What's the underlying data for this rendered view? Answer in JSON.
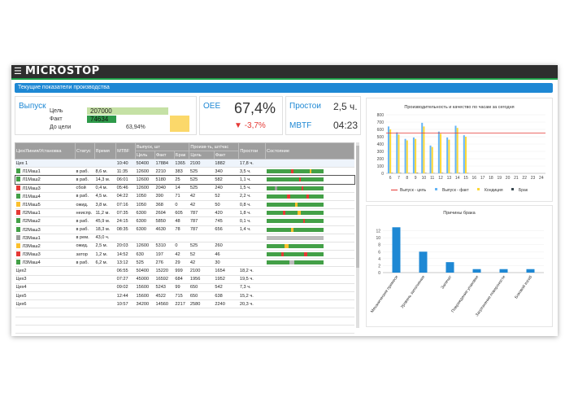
{
  "app": {
    "logo": "MICROSTOP",
    "page_title": "Текущие показатели производства"
  },
  "output": {
    "title": "Выпуск",
    "target_label": "Цель",
    "target_value": "207000",
    "fact_label": "Факт",
    "fact_value": "74634",
    "remain_label": "До цели",
    "remain_value": "63,94%",
    "fact_fraction": 0.36
  },
  "oee": {
    "title": "OEE",
    "value": "67,4%",
    "delta": "-3,7%"
  },
  "downtime": {
    "title": "Простои",
    "value": "2,5 ч.",
    "mtbf_label": "MBTF",
    "mtbf_value": "04:23"
  },
  "table": {
    "headers": {
      "unit": "Цех/Линия/Установка",
      "status": "Статус",
      "time": "Время",
      "mtbf": "MTBF",
      "output": "Выпуск, шт",
      "target": "Цель",
      "fact": "Факт",
      "defect": "Брак",
      "rate": "Произв-ть, шт/час",
      "rate_target": "Цель",
      "rate_fact": "Факт",
      "downtime": "Простои",
      "state": "Состояние"
    },
    "rows": [
      {
        "name": "Цех 1",
        "status": "",
        "time": "",
        "mtbf": "10:40",
        "target": "50400",
        "fact": "17884",
        "defect": "1365",
        "rt": "2100",
        "rf": "1882",
        "down": "17,8 ч.",
        "color": "",
        "indent": 0,
        "gantt": "none"
      },
      {
        "name": "Л1Маш1",
        "status": "в раб.",
        "time": "8,6 м.",
        "mtbf": "11:35",
        "target": "12600",
        "fact": "2210",
        "defect": "383",
        "rt": "525",
        "rf": "340",
        "down": "3,5 ч.",
        "color": "#43a047",
        "indent": 1,
        "gantt": "g1"
      },
      {
        "name": "Л1Маш2",
        "status": "в раб.",
        "time": "14,3 м.",
        "mtbf": "06:01",
        "target": "12600",
        "fact": "5180",
        "defect": "25",
        "rt": "525",
        "rf": "582",
        "down": "1,1 ч.",
        "color": "#43a047",
        "indent": 1,
        "gantt": "g2"
      },
      {
        "name": "Л1Маш3",
        "status": "сбой",
        "time": "0,4 м.",
        "mtbf": "05:46",
        "target": "12600",
        "fact": "2040",
        "defect": "14",
        "rt": "525",
        "rf": "240",
        "down": "1,5 ч.",
        "color": "#e53935",
        "indent": 1,
        "gantt": "g3"
      },
      {
        "name": "Л1Маш4",
        "status": "в раб.",
        "time": "4,5 м.",
        "mtbf": "04:22",
        "target": "1050",
        "fact": "390",
        "defect": "71",
        "rt": "42",
        "rf": "52",
        "down": "2,2 ч.",
        "color": "#43a047",
        "indent": 1,
        "gantt": "g4"
      },
      {
        "name": "Л1Маш5",
        "status": "ожид.",
        "time": "3,8 м.",
        "mtbf": "07:16",
        "target": "1050",
        "fact": "368",
        "defect": "0",
        "rt": "42",
        "rf": "50",
        "down": "0,8 ч.",
        "color": "#fbc02d",
        "indent": 1,
        "gantt": "g5"
      },
      {
        "name": "Л2Маш1",
        "status": "неиспр.",
        "time": "11,2 м.",
        "mtbf": "07:35",
        "target": "6300",
        "fact": "2604",
        "defect": "605",
        "rt": "787",
        "rf": "420",
        "down": "1,8 ч.",
        "color": "#e53935",
        "indent": 1,
        "gantt": "g6"
      },
      {
        "name": "Л2Маш2",
        "status": "в раб.",
        "time": "45,9 м.",
        "mtbf": "24:15",
        "target": "6300",
        "fact": "5850",
        "defect": "48",
        "rt": "787",
        "rf": "745",
        "down": "0,1 ч.",
        "color": "#43a047",
        "indent": 1,
        "gantt": "g7"
      },
      {
        "name": "Л2Маш3",
        "status": "в раб.",
        "time": "18,3 м.",
        "mtbf": "08:35",
        "target": "6300",
        "fact": "4630",
        "defect": "78",
        "rt": "787",
        "rf": "656",
        "down": "1,4 ч.",
        "color": "#43a047",
        "indent": 1,
        "gantt": "g8"
      },
      {
        "name": "Л3Маш1",
        "status": "в рем.",
        "time": "43,0 ч.",
        "mtbf": "",
        "target": "",
        "fact": "",
        "defect": "",
        "rt": "",
        "rf": "",
        "down": "",
        "color": "#9e9e9e",
        "indent": 1,
        "gantt": "g9"
      },
      {
        "name": "Л3Маш2",
        "status": "ожид.",
        "time": "2,5 м.",
        "mtbf": "20:03",
        "target": "12600",
        "fact": "5310",
        "defect": "0",
        "rt": "525",
        "rf": "260",
        "down": "",
        "color": "#fbc02d",
        "indent": 1,
        "gantt": "g10"
      },
      {
        "name": "Л3Маш3",
        "status": "затор",
        "time": "1,2 м.",
        "mtbf": "14:52",
        "target": "630",
        "fact": "197",
        "defect": "42",
        "rt": "52",
        "rf": "46",
        "down": "",
        "color": "#e53935",
        "indent": 1,
        "gantt": "g11"
      },
      {
        "name": "Л3Маш4",
        "status": "в раб.",
        "time": "6,2 м.",
        "mtbf": "13:12",
        "target": "525",
        "fact": "276",
        "defect": "29",
        "rt": "42",
        "rf": "30",
        "down": "",
        "color": "#43a047",
        "indent": 1,
        "gantt": "g12"
      },
      {
        "name": "Цех2",
        "status": "",
        "time": "",
        "mtbf": "06:55",
        "target": "50400",
        "fact": "15220",
        "defect": "999",
        "rt": "2100",
        "rf": "1654",
        "down": "18,2 ч.",
        "color": "",
        "indent": 0,
        "gantt": "none"
      },
      {
        "name": "Цех3",
        "status": "",
        "time": "",
        "mtbf": "07:27",
        "target": "45000",
        "fact": "16592",
        "defect": "684",
        "rt": "1956",
        "rf": "1952",
        "down": "19,5 ч.",
        "color": "",
        "indent": 0,
        "gantt": "none"
      },
      {
        "name": "Цех4",
        "status": "",
        "time": "",
        "mtbf": "09:02",
        "target": "15600",
        "fact": "5243",
        "defect": "99",
        "rt": "650",
        "rf": "542",
        "down": "7,3 ч.",
        "color": "",
        "indent": 0,
        "gantt": "none"
      },
      {
        "name": "Цех5",
        "status": "",
        "time": "",
        "mtbf": "12:44",
        "target": "15600",
        "fact": "4522",
        "defect": "715",
        "rt": "650",
        "rf": "638",
        "down": "15,2 ч.",
        "color": "",
        "indent": 0,
        "gantt": "none"
      },
      {
        "name": "Цех6",
        "status": "",
        "time": "",
        "mtbf": "10:57",
        "target": "34200",
        "fact": "14560",
        "defect": "2217",
        "rt": "2580",
        "rf": "2240",
        "down": "20,3 ч.",
        "color": "",
        "indent": 0,
        "gantt": "none"
      }
    ]
  },
  "chart_data": [
    {
      "type": "bar",
      "title": "Производительность и качество по часам за сегодня",
      "categories": [
        "6",
        "7",
        "8",
        "9",
        "10",
        "11",
        "12",
        "13",
        "14",
        "15",
        "16",
        "17",
        "18",
        "19",
        "20",
        "21",
        "22",
        "23",
        "24"
      ],
      "ylim": [
        0,
        800
      ],
      "yticks": [
        0,
        100,
        200,
        300,
        400,
        500,
        600,
        700,
        800
      ],
      "target_line": 550,
      "series": [
        {
          "name": "Выпуск - цель",
          "color": "#e53935",
          "kind": "line"
        },
        {
          "name": "Выпуск - факт",
          "color": "#64b5f6",
          "values": [
            640,
            560,
            470,
            490,
            690,
            380,
            570,
            490,
            650,
            520,
            0,
            0,
            0,
            0,
            0,
            0,
            0,
            0,
            0
          ]
        },
        {
          "name": "Кондиция",
          "color": "#fdd835",
          "values": [
            600,
            530,
            450,
            470,
            640,
            360,
            540,
            460,
            620,
            500,
            0,
            0,
            0,
            0,
            0,
            0,
            0,
            0,
            0
          ]
        },
        {
          "name": "Брак",
          "color": "#37474f",
          "values": [
            5,
            4,
            3,
            6,
            4,
            2,
            5,
            3,
            4,
            3,
            0,
            0,
            0,
            0,
            0,
            0,
            0,
            0,
            0
          ]
        }
      ],
      "legend": "bottom"
    },
    {
      "type": "bar",
      "title": "Причины брака",
      "categories": [
        "Механические примеси",
        "Уровень заполнения",
        "Запечат",
        "Повреждение упаковки",
        "Загрязнение поверхности",
        "Боковой изгиб"
      ],
      "values": [
        13,
        6,
        3,
        1,
        1,
        1
      ],
      "ylim": [
        0,
        14
      ],
      "yticks": [
        0,
        2,
        4,
        6,
        8,
        10,
        12
      ],
      "color": "#1e88d4"
    }
  ],
  "colors": {
    "accent": "#1e88d4",
    "ok": "#43a047",
    "warn": "#fbc02d",
    "fail": "#e53935"
  }
}
